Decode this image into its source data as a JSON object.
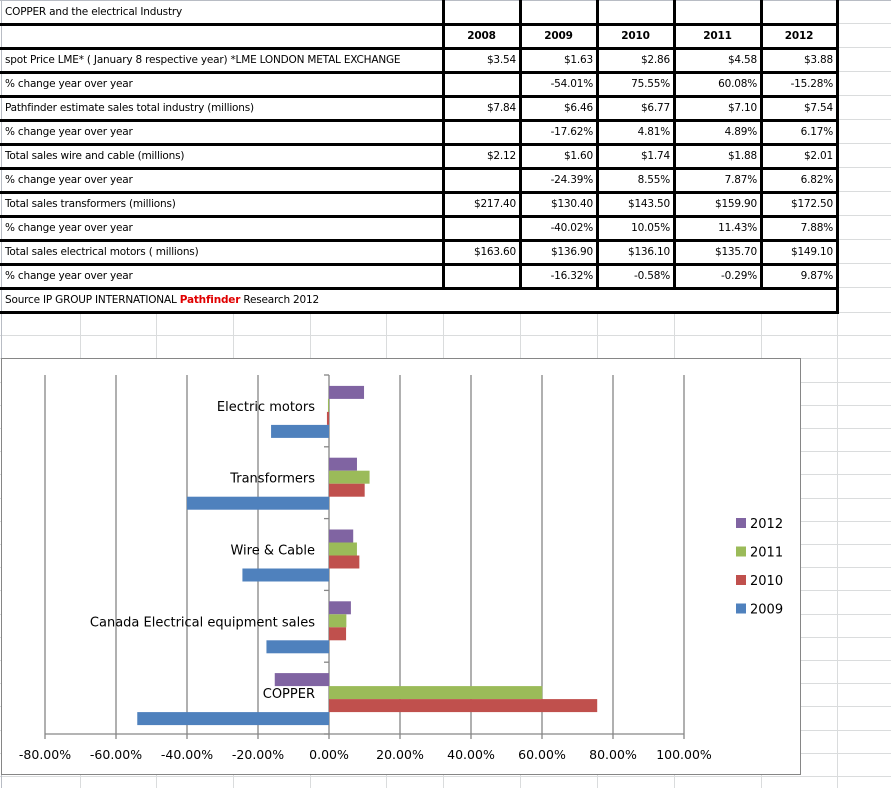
{
  "sheet": {
    "title": "COPPER and the electrical Industry",
    "years": [
      "2008",
      "2009",
      "2010",
      "2011",
      "2012"
    ],
    "rows": [
      {
        "label": "spot Price LME* ( January 8 respective year) *LME LONDON METAL EXCHANGE",
        "values": [
          "$3.54",
          "$1.63",
          "$2.86",
          "$4.58",
          "$3.88"
        ]
      },
      {
        "label": "%  change year over year",
        "values": [
          "",
          "-54.01%",
          "75.55%",
          "60.08%",
          "-15.28%"
        ]
      },
      {
        "label": "Pathfinder estimate sales total industry (millions)",
        "values": [
          "$7.84",
          "$6.46",
          "$6.77",
          "$7.10",
          "$7.54"
        ]
      },
      {
        "label": "%  change year over year",
        "values": [
          "",
          "-17.62%",
          "4.81%",
          "4.89%",
          "6.17%"
        ]
      },
      {
        "label": "Total sales wire and cable (millions)",
        "values": [
          "$2.12",
          "$1.60",
          "$1.74",
          "$1.88",
          "$2.01"
        ]
      },
      {
        "label": "%  change year over year",
        "values": [
          "",
          "-24.39%",
          "8.55%",
          "7.87%",
          "6.82%"
        ]
      },
      {
        "label": "Total sales transformers (millions)",
        "values": [
          "$217.40",
          "$130.40",
          "$143.50",
          "$159.90",
          "$172.50"
        ]
      },
      {
        "label": "%  change year over year",
        "values": [
          "",
          "-40.02%",
          "10.05%",
          "11.43%",
          "7.88%"
        ]
      },
      {
        "label": "Total sales electrical motors ( millions)",
        "values": [
          "$163.60",
          "$136.90",
          "$136.10",
          "$135.70",
          "$149.10"
        ]
      },
      {
        "label": "%  change year over year",
        "values": [
          "",
          "-16.32%",
          "-0.58%",
          "-0.29%",
          "9.87%"
        ]
      }
    ],
    "source_prefix": "Source IP GROUP INTERNATIONAL ",
    "source_brand": "Pathfinder",
    "source_suffix": " Research 2012",
    "brand_color": "#e00000"
  },
  "chart_data": {
    "type": "bar",
    "orientation": "horizontal",
    "title": "",
    "xlabel": "",
    "ylabel": "",
    "categories": [
      "Electric motors",
      "Transformers",
      "Wire & Cable",
      "Canada Electrical equipment sales",
      "COPPER"
    ],
    "series": [
      {
        "name": "2009",
        "color": "#4f81bd",
        "values": [
          -16.32,
          -40.02,
          -24.39,
          -17.62,
          -54.01
        ]
      },
      {
        "name": "2010",
        "color": "#c0504d",
        "values": [
          -0.58,
          10.05,
          8.55,
          4.81,
          75.55
        ]
      },
      {
        "name": "2011",
        "color": "#9bbb59",
        "values": [
          -0.29,
          11.43,
          7.87,
          4.89,
          60.08
        ]
      },
      {
        "name": "2012",
        "color": "#8064a2",
        "values": [
          9.87,
          7.88,
          6.82,
          6.17,
          -15.28
        ]
      }
    ],
    "xlim": [
      -80,
      100
    ],
    "x_ticks": [
      -80,
      -60,
      -40,
      -20,
      0,
      20,
      40,
      60,
      80,
      100
    ],
    "x_tick_labels": [
      "-80.00%",
      "-60.00%",
      "-40.00%",
      "-20.00%",
      "0.00%",
      "20.00%",
      "40.00%",
      "60.00%",
      "80.00%",
      "100.00%"
    ],
    "grid": "vertical",
    "legend": {
      "placement": "right",
      "order": [
        "2012",
        "2011",
        "2010",
        "2009"
      ]
    }
  }
}
